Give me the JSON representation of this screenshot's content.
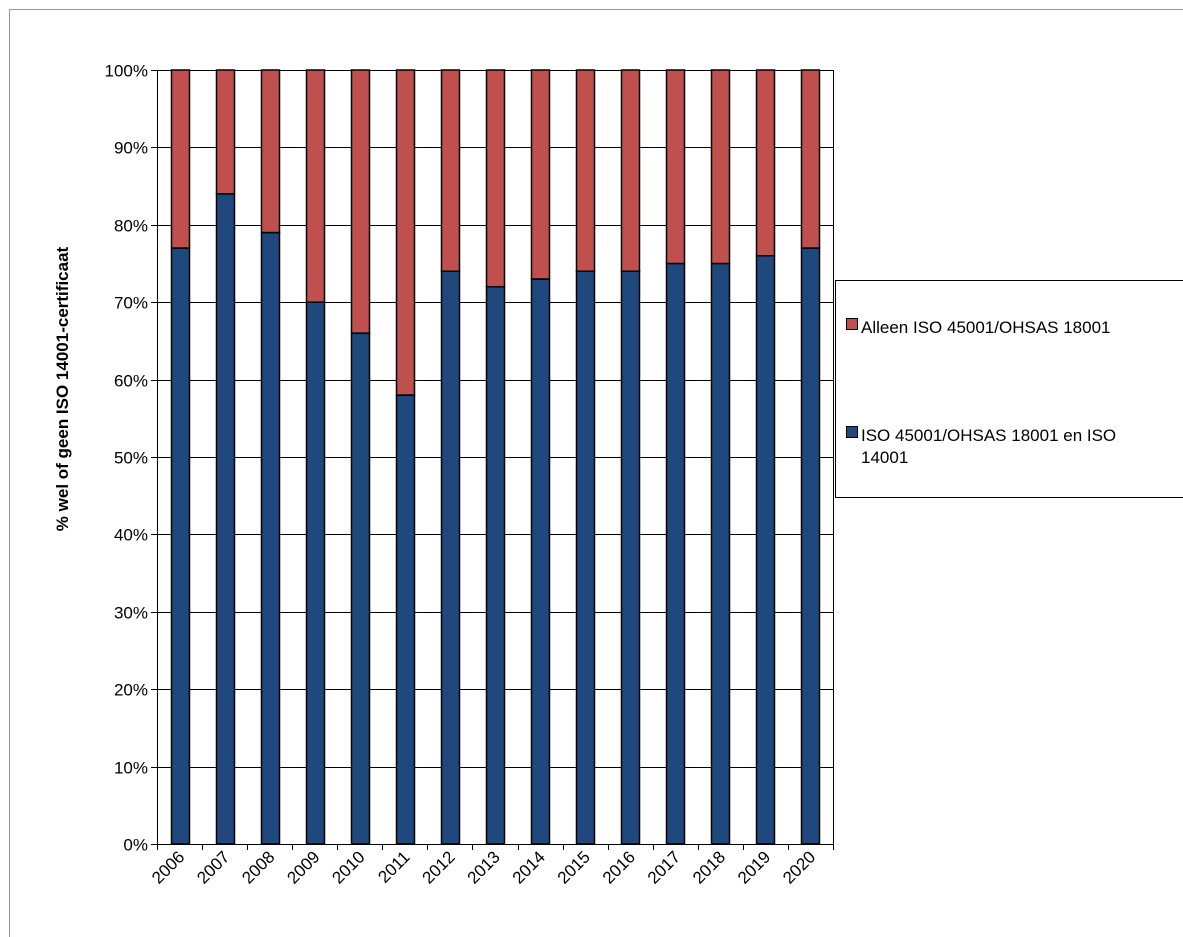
{
  "chart_data": {
    "type": "bar",
    "stacked": true,
    "normalized": true,
    "categories": [
      "2006",
      "2007",
      "2008",
      "2009",
      "2010",
      "2011",
      "2012",
      "2013",
      "2014",
      "2015",
      "2016",
      "2017",
      "2018",
      "2019",
      "2020"
    ],
    "series": [
      {
        "name": "ISO 45001/OHSAS 18001 en ISO 14001",
        "color": "#1F497D",
        "values": [
          77,
          84,
          79,
          70,
          66,
          58,
          74,
          72,
          73,
          74,
          74,
          75,
          75,
          76,
          77
        ]
      },
      {
        "name": "Alleen ISO 45001/OHSAS 18001",
        "color": "#C0504D",
        "values": [
          23,
          16,
          21,
          30,
          34,
          42,
          26,
          28,
          27,
          26,
          26,
          25,
          25,
          24,
          23
        ]
      }
    ],
    "title": "",
    "xlabel": "",
    "ylabel": "% wel of geen ISO 14001-certificaat",
    "ylim": [
      0,
      100
    ],
    "yticks": [
      "0%",
      "10%",
      "20%",
      "30%",
      "40%",
      "50%",
      "60%",
      "70%",
      "80%",
      "90%",
      "100%"
    ],
    "grid": true,
    "legend": {
      "position": "right",
      "entries": [
        {
          "label_lines": [
            "Alleen ISO 45001/OHSAS 18001"
          ],
          "color": "#C0504D"
        },
        {
          "label_lines": [
            "ISO 45001/OHSAS 18001 en ISO",
            "14001"
          ],
          "color": "#1F497D"
        }
      ]
    }
  }
}
